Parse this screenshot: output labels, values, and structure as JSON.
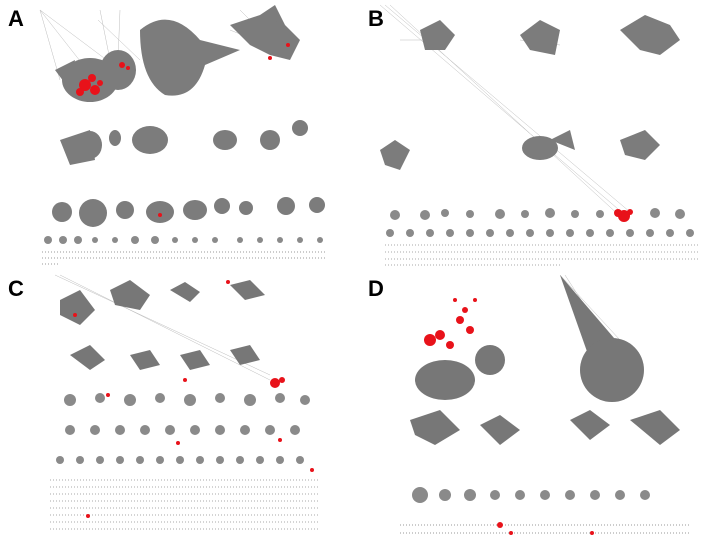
{
  "figure": {
    "panels": [
      {
        "label": "A"
      },
      {
        "label": "B"
      },
      {
        "label": "C"
      },
      {
        "label": "D"
      }
    ]
  },
  "colors": {
    "background": "#ffffff",
    "node_gray": "#7f7f7f",
    "node_dark": "#5e5e5e",
    "edge_gray": "#b9b9b9",
    "highlight": "#e8121a"
  }
}
